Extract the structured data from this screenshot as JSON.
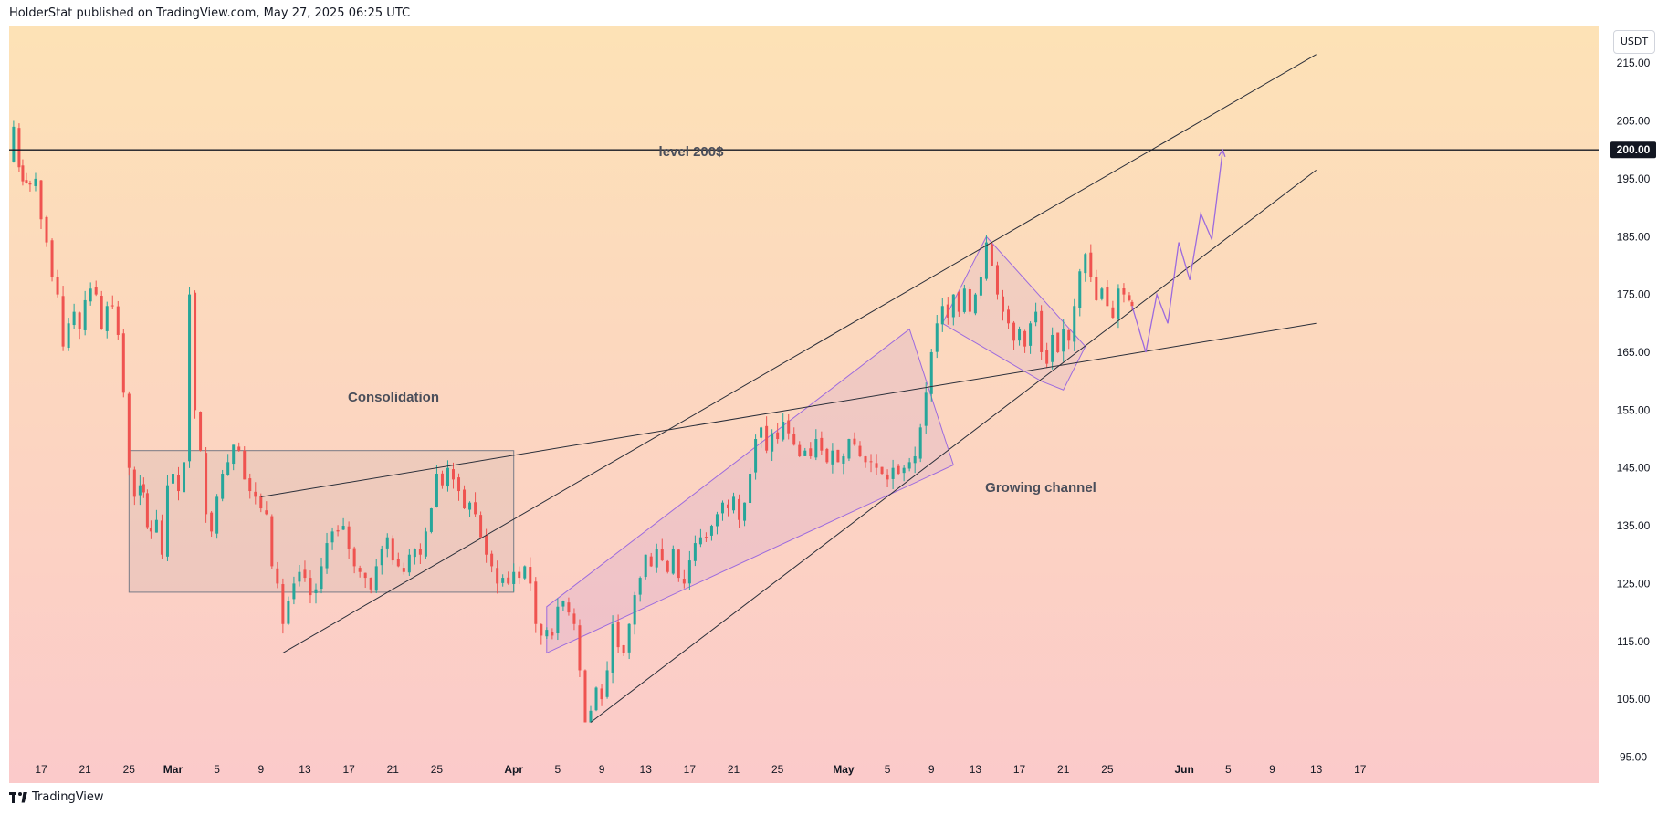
{
  "header": {
    "published": "HolderStat published on TradingView.com, May 27, 2025 06:25 UTC"
  },
  "currency": "USDT",
  "footer": {
    "logo_text": "TradingView"
  },
  "colors": {
    "bg_top": "#fde2b6",
    "bg_bottom": "#fbcaca",
    "up": "#26a69a",
    "down": "#ef5350",
    "pattern": "#9c6ade",
    "trendline": "#2a2e39"
  },
  "annotations": {
    "level": "level 200$",
    "consolidation": "Consolidation",
    "channel": "Growing channel"
  },
  "chart_data": {
    "type": "candlestick",
    "symbol_quote": "USDT",
    "ylim": [
      90.5,
      221.5
    ],
    "y_ticks": [
      215,
      205,
      195,
      185,
      175,
      165,
      155,
      145,
      135,
      125,
      115,
      105,
      95
    ],
    "y_tick_labels": [
      "215.00",
      "205.00",
      "195.00",
      "185.00",
      "175.00",
      "165.00",
      "155.00",
      "145.00",
      "135.00",
      "125.00",
      "115.00",
      "105.00",
      "95.00"
    ],
    "price_marker": {
      "value": 200,
      "label": "200.00"
    },
    "x_ticks": [
      {
        "date": "2025-02-17",
        "label": "17"
      },
      {
        "date": "2025-02-21",
        "label": "21"
      },
      {
        "date": "2025-02-25",
        "label": "25"
      },
      {
        "date": "2025-03-01",
        "label": "Mar"
      },
      {
        "date": "2025-03-05",
        "label": "5"
      },
      {
        "date": "2025-03-09",
        "label": "9"
      },
      {
        "date": "2025-03-13",
        "label": "13"
      },
      {
        "date": "2025-03-17",
        "label": "17"
      },
      {
        "date": "2025-03-21",
        "label": "21"
      },
      {
        "date": "2025-03-25",
        "label": "25"
      },
      {
        "date": "2025-04-01",
        "label": "Apr"
      },
      {
        "date": "2025-04-05",
        "label": "5"
      },
      {
        "date": "2025-04-09",
        "label": "9"
      },
      {
        "date": "2025-04-13",
        "label": "13"
      },
      {
        "date": "2025-04-17",
        "label": "17"
      },
      {
        "date": "2025-04-21",
        "label": "21"
      },
      {
        "date": "2025-04-25",
        "label": "25"
      },
      {
        "date": "2025-05-01",
        "label": "May"
      },
      {
        "date": "2025-05-05",
        "label": "5"
      },
      {
        "date": "2025-05-09",
        "label": "9"
      },
      {
        "date": "2025-05-13",
        "label": "13"
      },
      {
        "date": "2025-05-17",
        "label": "17"
      },
      {
        "date": "2025-05-21",
        "label": "21"
      },
      {
        "date": "2025-05-25",
        "label": "25"
      },
      {
        "date": "2025-06-01",
        "label": "Jun"
      },
      {
        "date": "2025-06-05",
        "label": "5"
      },
      {
        "date": "2025-06-09",
        "label": "9"
      },
      {
        "date": "2025-06-13",
        "label": "13"
      },
      {
        "date": "2025-06-17",
        "label": "17"
      }
    ],
    "close_path": [
      [
        "2025-02-14T00:00",
        198
      ],
      [
        "2025-02-14T12:00",
        204
      ],
      [
        "2025-02-15T00:00",
        197
      ],
      [
        "2025-02-16T00:00",
        194
      ],
      [
        "2025-02-16T12:00",
        195
      ],
      [
        "2025-02-17T00:00",
        188
      ],
      [
        "2025-02-17T12:00",
        184
      ],
      [
        "2025-02-18T00:00",
        178
      ],
      [
        "2025-02-18T12:00",
        175
      ],
      [
        "2025-02-19T00:00",
        166
      ],
      [
        "2025-02-19T12:00",
        170
      ],
      [
        "2025-02-20T00:00",
        172
      ],
      [
        "2025-02-20T12:00",
        169
      ],
      [
        "2025-02-21T00:00",
        174
      ],
      [
        "2025-02-21T12:00",
        176
      ],
      [
        "2025-02-22T00:00",
        175
      ],
      [
        "2025-02-22T12:00",
        169
      ],
      [
        "2025-02-23T00:00",
        173
      ],
      [
        "2025-02-23T12:00",
        173
      ],
      [
        "2025-02-24T00:00",
        168
      ],
      [
        "2025-02-24T12:00",
        158
      ],
      [
        "2025-02-25T00:00",
        145
      ],
      [
        "2025-02-25T12:00",
        140
      ],
      [
        "2025-02-26T00:00",
        142
      ],
      [
        "2025-02-27T00:00",
        134
      ],
      [
        "2025-02-27T12:00",
        136
      ],
      [
        "2025-02-28T00:00",
        130
      ],
      [
        "2025-02-28T12:00",
        142
      ],
      [
        "2025-03-01T00:00",
        144
      ],
      [
        "2025-03-01T12:00",
        141
      ],
      [
        "2025-03-02T00:00",
        146
      ],
      [
        "2025-03-02T12:00",
        175
      ],
      [
        "2025-03-03T00:00",
        155
      ],
      [
        "2025-03-03T12:00",
        148
      ],
      [
        "2025-03-04T00:00",
        137
      ],
      [
        "2025-03-04T12:00",
        134
      ],
      [
        "2025-03-05T00:00",
        140
      ],
      [
        "2025-03-05T12:00",
        144
      ],
      [
        "2025-03-06T00:00",
        146
      ],
      [
        "2025-03-06T12:00",
        149
      ],
      [
        "2025-03-07T00:00",
        148
      ],
      [
        "2025-03-07T12:00",
        143
      ],
      [
        "2025-03-08T00:00",
        141
      ],
      [
        "2025-03-08T12:00",
        140
      ],
      [
        "2025-03-09T00:00",
        138
      ],
      [
        "2025-03-09T12:00",
        137
      ],
      [
        "2025-03-10T00:00",
        128
      ],
      [
        "2025-03-10T12:00",
        125
      ],
      [
        "2025-03-11T00:00",
        118
      ],
      [
        "2025-03-11T12:00",
        122
      ],
      [
        "2025-03-12T00:00",
        125
      ],
      [
        "2025-03-12T12:00",
        127
      ],
      [
        "2025-03-13T00:00",
        126
      ],
      [
        "2025-03-13T12:00",
        123
      ],
      [
        "2025-03-14T00:00",
        124
      ],
      [
        "2025-03-14T12:00",
        128
      ],
      [
        "2025-03-15T00:00",
        132
      ],
      [
        "2025-03-15T12:00",
        134
      ],
      [
        "2025-03-16T00:00",
        134
      ],
      [
        "2025-03-16T12:00",
        135
      ],
      [
        "2025-03-17T00:00",
        131
      ],
      [
        "2025-03-17T12:00",
        128
      ],
      [
        "2025-03-18T00:00",
        127
      ],
      [
        "2025-03-18T12:00",
        126
      ],
      [
        "2025-03-19T00:00",
        124
      ],
      [
        "2025-03-19T12:00",
        128
      ],
      [
        "2025-03-20T00:00",
        131
      ],
      [
        "2025-03-20T12:00",
        133
      ],
      [
        "2025-03-21T00:00",
        129
      ],
      [
        "2025-03-21T12:00",
        128
      ],
      [
        "2025-03-22T00:00",
        127
      ],
      [
        "2025-03-22T12:00",
        130
      ],
      [
        "2025-03-23T00:00",
        131
      ],
      [
        "2025-03-23T12:00",
        130
      ],
      [
        "2025-03-24T00:00",
        134
      ],
      [
        "2025-03-24T12:00",
        138
      ],
      [
        "2025-03-25T00:00",
        144
      ],
      [
        "2025-03-25T12:00",
        142
      ],
      [
        "2025-03-26T00:00",
        145
      ],
      [
        "2025-03-26T12:00",
        143
      ],
      [
        "2025-03-27T00:00",
        141
      ],
      [
        "2025-03-27T12:00",
        138
      ],
      [
        "2025-03-28T00:00",
        139
      ],
      [
        "2025-03-28T12:00",
        137
      ],
      [
        "2025-03-29T00:00",
        133
      ],
      [
        "2025-03-29T12:00",
        130
      ],
      [
        "2025-03-30T00:00",
        128
      ],
      [
        "2025-03-30T12:00",
        125
      ],
      [
        "2025-03-31T00:00",
        126
      ],
      [
        "2025-03-31T12:00",
        125
      ],
      [
        "2025-04-01T00:00",
        127
      ],
      [
        "2025-04-01T12:00",
        126
      ],
      [
        "2025-04-02T00:00",
        128
      ],
      [
        "2025-04-02T12:00",
        125
      ],
      [
        "2025-04-03T00:00",
        118
      ],
      [
        "2025-04-03T12:00",
        116
      ],
      [
        "2025-04-04T00:00",
        117
      ],
      [
        "2025-04-04T12:00",
        116
      ],
      [
        "2025-04-05T00:00",
        121
      ],
      [
        "2025-04-05T12:00",
        122
      ],
      [
        "2025-04-06T00:00",
        120
      ],
      [
        "2025-04-06T12:00",
        118
      ],
      [
        "2025-04-07T00:00",
        110
      ],
      [
        "2025-04-07T12:00",
        101
      ],
      [
        "2025-04-08T00:00",
        103
      ],
      [
        "2025-04-08T12:00",
        107
      ],
      [
        "2025-04-09T00:00",
        105
      ],
      [
        "2025-04-09T12:00",
        110
      ],
      [
        "2025-04-10T00:00",
        118
      ],
      [
        "2025-04-10T12:00",
        114
      ],
      [
        "2025-04-11T00:00",
        113
      ],
      [
        "2025-04-11T12:00",
        118
      ],
      [
        "2025-04-12T00:00",
        123
      ],
      [
        "2025-04-12T12:00",
        126
      ],
      [
        "2025-04-13T00:00",
        130
      ],
      [
        "2025-04-13T12:00",
        128
      ],
      [
        "2025-04-14T00:00",
        131
      ],
      [
        "2025-04-14T12:00",
        129
      ],
      [
        "2025-04-15T00:00",
        127
      ],
      [
        "2025-04-15T12:00",
        131
      ],
      [
        "2025-04-16T00:00",
        126
      ],
      [
        "2025-04-16T12:00",
        125
      ],
      [
        "2025-04-17T00:00",
        129
      ],
      [
        "2025-04-17T12:00",
        132
      ],
      [
        "2025-04-18T00:00",
        133
      ],
      [
        "2025-04-18T12:00",
        133
      ],
      [
        "2025-04-19T00:00",
        135
      ],
      [
        "2025-04-19T12:00",
        137
      ],
      [
        "2025-04-20T00:00",
        139
      ],
      [
        "2025-04-20T12:00",
        138
      ],
      [
        "2025-04-21T00:00",
        140
      ],
      [
        "2025-04-21T12:00",
        136
      ],
      [
        "2025-04-22T00:00",
        139
      ],
      [
        "2025-04-22T12:00",
        144
      ],
      [
        "2025-04-23T00:00",
        150
      ],
      [
        "2025-04-23T12:00",
        152
      ],
      [
        "2025-04-24T00:00",
        148
      ],
      [
        "2025-04-24T12:00",
        151
      ],
      [
        "2025-04-25T00:00",
        150
      ],
      [
        "2025-04-25T12:00",
        153
      ],
      [
        "2025-04-26T00:00",
        151
      ],
      [
        "2025-04-26T12:00",
        149
      ],
      [
        "2025-04-27T00:00",
        147
      ],
      [
        "2025-04-27T12:00",
        148
      ],
      [
        "2025-04-28T00:00",
        147
      ],
      [
        "2025-04-28T12:00",
        150
      ],
      [
        "2025-04-29T00:00",
        148
      ],
      [
        "2025-04-29T12:00",
        146
      ],
      [
        "2025-04-30T00:00",
        148
      ],
      [
        "2025-04-30T12:00",
        146
      ],
      [
        "2025-05-01T00:00",
        147
      ],
      [
        "2025-05-01T12:00",
        150
      ],
      [
        "2025-05-02T00:00",
        149
      ],
      [
        "2025-05-02T12:00",
        147
      ],
      [
        "2025-05-03T00:00",
        146
      ],
      [
        "2025-05-03T12:00",
        146
      ],
      [
        "2025-05-04T00:00",
        145
      ],
      [
        "2025-05-04T12:00",
        144
      ],
      [
        "2025-05-05T00:00",
        143
      ],
      [
        "2025-05-05T12:00",
        145
      ],
      [
        "2025-05-06T00:00",
        144
      ],
      [
        "2025-05-06T12:00",
        145
      ],
      [
        "2025-05-07T00:00",
        146
      ],
      [
        "2025-05-07T12:00",
        147
      ],
      [
        "2025-05-08T00:00",
        152
      ],
      [
        "2025-05-08T12:00",
        158
      ],
      [
        "2025-05-09T00:00",
        165
      ],
      [
        "2025-05-09T12:00",
        170
      ],
      [
        "2025-05-10T00:00",
        173
      ],
      [
        "2025-05-10T12:00",
        171
      ],
      [
        "2025-05-11T00:00",
        175
      ],
      [
        "2025-05-11T12:00",
        172
      ],
      [
        "2025-05-12T00:00",
        176
      ],
      [
        "2025-05-12T12:00",
        172
      ],
      [
        "2025-05-13T00:00",
        175
      ],
      [
        "2025-05-13T12:00",
        178
      ],
      [
        "2025-05-14T00:00",
        184
      ],
      [
        "2025-05-14T12:00",
        180
      ],
      [
        "2025-05-15T00:00",
        175
      ],
      [
        "2025-05-15T12:00",
        172
      ],
      [
        "2025-05-16T00:00",
        170
      ],
      [
        "2025-05-16T12:00",
        167
      ],
      [
        "2025-05-17T00:00",
        169
      ],
      [
        "2025-05-17T12:00",
        166
      ],
      [
        "2025-05-18T00:00",
        170
      ],
      [
        "2025-05-18T12:00",
        172
      ],
      [
        "2025-05-19T00:00",
        165
      ],
      [
        "2025-05-19T12:00",
        163
      ],
      [
        "2025-05-20T00:00",
        168
      ],
      [
        "2025-05-20T12:00",
        165
      ],
      [
        "2025-05-21T00:00",
        169
      ],
      [
        "2025-05-21T12:00",
        167
      ],
      [
        "2025-05-22T00:00",
        173
      ],
      [
        "2025-05-22T12:00",
        179
      ],
      [
        "2025-05-23T00:00",
        182
      ],
      [
        "2025-05-23T12:00",
        178
      ],
      [
        "2025-05-24T00:00",
        174
      ],
      [
        "2025-05-24T12:00",
        176
      ],
      [
        "2025-05-25T00:00",
        173
      ],
      [
        "2025-05-25T12:00",
        171
      ],
      [
        "2025-05-26T00:00",
        176
      ],
      [
        "2025-05-26T12:00",
        175
      ],
      [
        "2025-05-27T00:00",
        174
      ],
      [
        "2025-05-27T06:00",
        173
      ]
    ],
    "horizontal_line": {
      "value": 200
    },
    "trend_lines": [
      [
        [
          "2025-03-11",
          113
        ],
        [
          "2025-06-13",
          216.5
        ]
      ],
      [
        [
          "2025-04-08",
          101
        ],
        [
          "2025-06-13",
          196.5
        ]
      ],
      [
        [
          "2025-03-09",
          140
        ],
        [
          "2025-06-13",
          170
        ]
      ]
    ],
    "consolidation_box": {
      "start": "2025-02-25",
      "end": "2025-04-01",
      "top": 148,
      "bottom": 123.5
    },
    "channel_polygon": [
      [
        "2025-04-04",
        121
      ],
      [
        "2025-05-07",
        169
      ],
      [
        "2025-05-11",
        145.5
      ],
      [
        "2025-04-04",
        113
      ]
    ],
    "triangle": [
      [
        "2025-05-10",
        170
      ],
      [
        "2025-05-14",
        185
      ],
      [
        "2025-05-23",
        166
      ],
      [
        "2025-05-21",
        158.5
      ],
      [
        "2025-05-19",
        160
      ]
    ],
    "forecast_path": [
      [
        "2025-05-27T06:00",
        173
      ],
      [
        "2025-05-28T12:00",
        165
      ],
      [
        "2025-05-29T12:00",
        175
      ],
      [
        "2025-05-30T12:00",
        170
      ],
      [
        "2025-05-31T12:00",
        184
      ],
      [
        "2025-06-01T12:00",
        177.5
      ],
      [
        "2025-06-02T12:00",
        189
      ],
      [
        "2025-06-03T12:00",
        184.5
      ],
      [
        "2025-06-04T12:00",
        200
      ]
    ]
  }
}
